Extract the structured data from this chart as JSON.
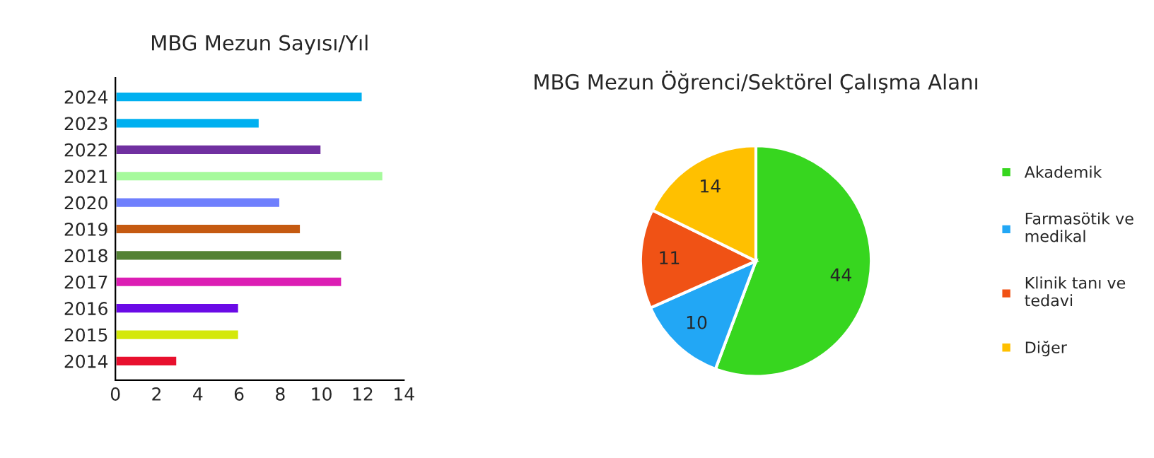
{
  "chart_data": [
    {
      "type": "bar",
      "title": "MBG Mezun Sayısı/Yıl",
      "orientation": "horizontal",
      "categories": [
        "2024",
        "2023",
        "2022",
        "2021",
        "2020",
        "2019",
        "2018",
        "2017",
        "2016",
        "2015",
        "2014"
      ],
      "values": [
        12,
        7,
        10,
        13,
        8,
        9,
        11,
        11,
        6,
        6,
        3
      ],
      "colors": [
        "#00b0f0",
        "#00b0f0",
        "#7030a0",
        "#a6fa9c",
        "#6f7ffd",
        "#c55a11",
        "#548235",
        "#dc1eb4",
        "#6a0ae6",
        "#d4e80a",
        "#e8102e"
      ],
      "xlim": [
        0,
        14
      ],
      "xticks": [
        0,
        2,
        4,
        6,
        8,
        10,
        12,
        14
      ],
      "grid": false
    },
    {
      "type": "pie",
      "title": "MBG Mezun Öğrenci/Sektörel Çalışma Alanı",
      "categories": [
        "Akademik",
        "Farmasötik ve\nmedikal",
        "Klinik tanı ve\ntedavi",
        "Diğer"
      ],
      "values": [
        44,
        10,
        11,
        14
      ],
      "colors": [
        "#37d61f",
        "#22a7f5",
        "#f05215",
        "#ffc000"
      ],
      "data_labels": true,
      "legend": "right"
    }
  ]
}
